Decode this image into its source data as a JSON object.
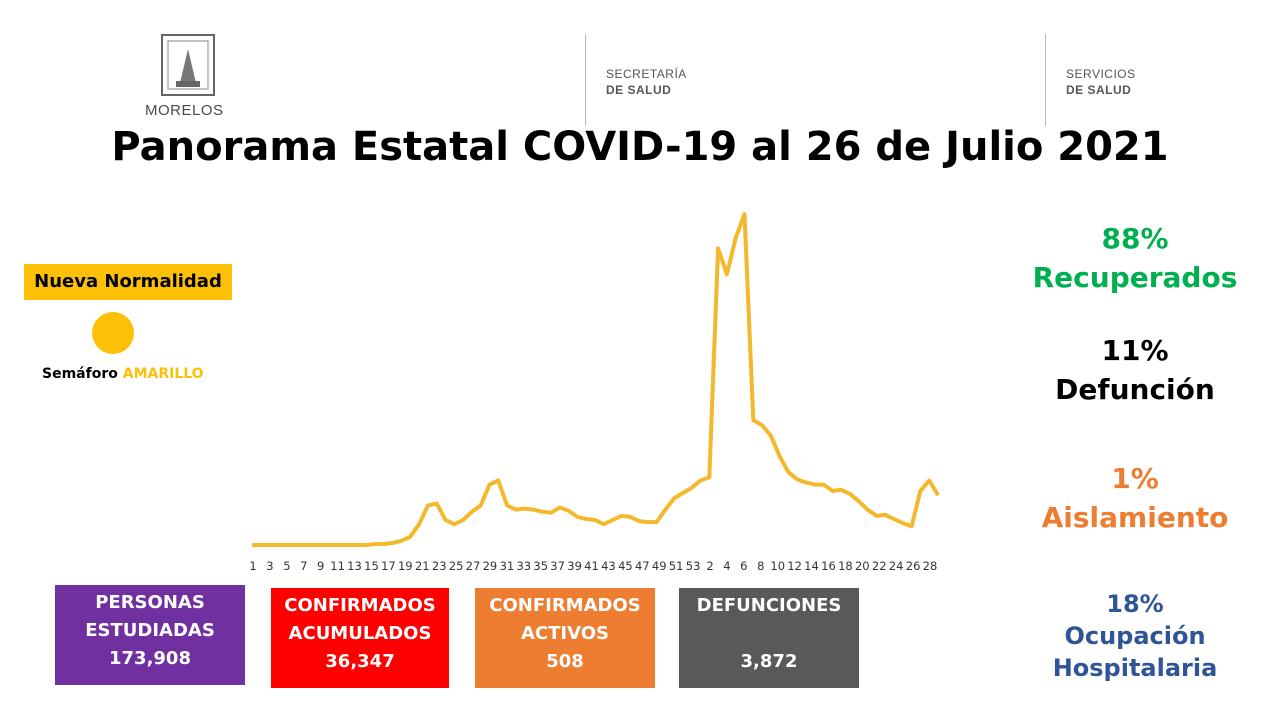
{
  "header": {
    "logo_text": "MORELOS",
    "secretaria_line1": "SECRETARÍA",
    "secretaria_line2": "DE SALUD",
    "servicios_line1": "SERVICIOS",
    "servicios_line2": "DE SALUD"
  },
  "title": "Panorama Estatal COVID-19 al 26 de Julio 2021",
  "status": {
    "phase": "Nueva Normalidad",
    "semaforo_label": "Semáforo",
    "semaforo_color_word": "AMARILLO",
    "semaforo_color": "#fcc009"
  },
  "stats": {
    "recuperados": {
      "pct": "88%",
      "label": "Recuperados",
      "color": "#00b050"
    },
    "defuncion": {
      "pct": "11%",
      "label": "Defunción",
      "color": "#000000"
    },
    "aislamiento": {
      "pct": "1%",
      "label": "Aislamiento",
      "color": "#ed7d31"
    },
    "ocupacion": {
      "pct": "18%",
      "label1": "Ocupación",
      "label2": "Hospitalaria",
      "color": "#2f5597"
    }
  },
  "boxes": {
    "estudiadas": {
      "line1": "PERSONAS",
      "line2": "ESTUDIADAS",
      "value": "173,908",
      "color": "#7030a0"
    },
    "acumulados": {
      "line1": "CONFIRMADOS",
      "line2": "ACUMULADOS",
      "value": "36,347",
      "color": "#ff0000"
    },
    "activos": {
      "line1": "CONFIRMADOS",
      "line2": "ACTIVOS",
      "value": "508",
      "color": "#ed7d31"
    },
    "defunciones": {
      "line1": "DEFUNCIONES",
      "value": "3,872",
      "color": "#595959"
    }
  },
  "chart_data": {
    "type": "line",
    "line_color": "#f4b82c",
    "grid": false,
    "x_tick_labels": [
      "1",
      "3",
      "5",
      "7",
      "9",
      "11",
      "13",
      "15",
      "17",
      "19",
      "21",
      "23",
      "25",
      "27",
      "29",
      "31",
      "33",
      "35",
      "37",
      "39",
      "41",
      "43",
      "45",
      "47",
      "49",
      "51",
      "53",
      "2",
      "4",
      "6",
      "8",
      "10",
      "12",
      "14",
      "16",
      "18",
      "20",
      "22",
      "24",
      "26",
      "28"
    ],
    "series": [
      {
        "values": [
          0,
          0,
          0,
          0,
          0,
          0,
          0,
          0,
          0,
          0,
          0,
          0,
          0,
          0,
          1,
          1,
          2,
          4,
          8,
          20,
          38,
          40,
          24,
          20,
          24,
          32,
          38,
          58,
          62,
          38,
          34,
          35,
          34,
          32,
          31,
          36,
          33,
          27,
          25,
          24,
          20,
          24,
          28,
          27,
          23,
          22,
          22,
          34,
          45,
          50,
          55,
          62,
          65,
          285,
          260,
          295,
          318,
          120,
          115,
          105,
          85,
          70,
          63,
          60,
          58,
          58,
          52,
          53,
          49,
          42,
          34,
          28,
          29,
          25,
          21,
          18,
          52,
          62,
          48
        ]
      }
    ]
  }
}
